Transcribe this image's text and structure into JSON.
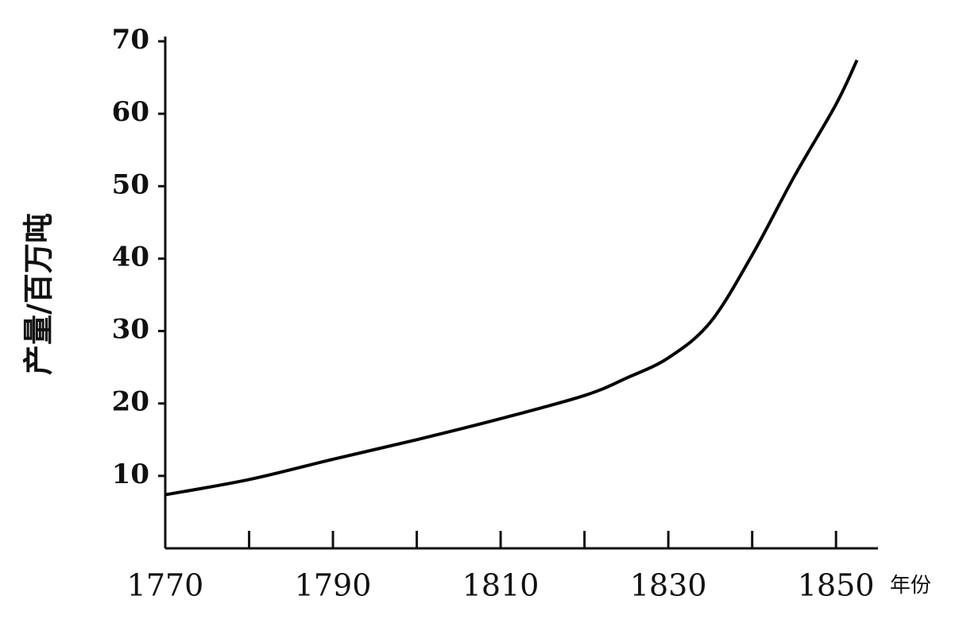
{
  "chart_data": {
    "type": "line",
    "y_label": "产量/百万吨",
    "x_label": "年份",
    "x": [
      1770,
      1780,
      1790,
      1800,
      1810,
      1820,
      1825,
      1830,
      1835,
      1840,
      1845,
      1850,
      1852.5
    ],
    "values": [
      7.4,
      9.5,
      12.3,
      15,
      17.9,
      21.1,
      23.5,
      26.3,
      31.2,
      40.5,
      51.3,
      61.3,
      67.4
    ],
    "color": "#000000",
    "xlim": [
      1770,
      1855
    ],
    "xticks": [
      1770,
      1790,
      1810,
      1830,
      1850
    ],
    "xminor_ticks": [
      1780,
      1800,
      1820,
      1840
    ],
    "ylim": [
      0,
      70
    ],
    "yticks": [
      10,
      20,
      30,
      40,
      50,
      60,
      70
    ],
    "grid": false
  }
}
